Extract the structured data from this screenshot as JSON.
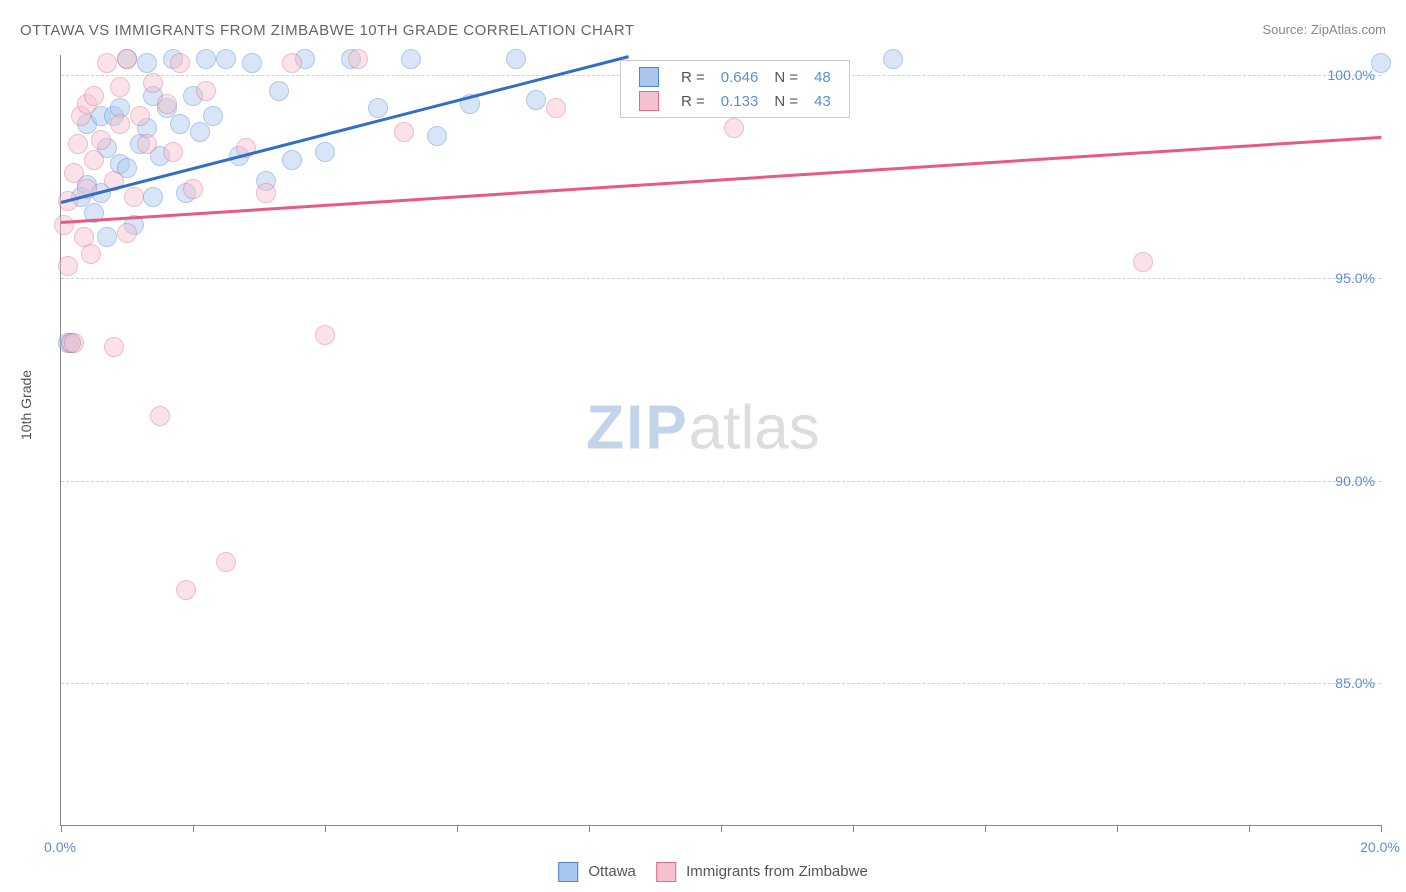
{
  "title": "OTTAWA VS IMMIGRANTS FROM ZIMBABWE 10TH GRADE CORRELATION CHART",
  "source_label": "Source: ZipAtlas.com",
  "yaxis_label": "10th Grade",
  "watermark": {
    "part1": "ZIP",
    "part2": "atlas"
  },
  "chart": {
    "type": "scatter",
    "xlim": [
      0.0,
      20.0
    ],
    "ylim": [
      81.5,
      100.5
    ],
    "x_ticks": [
      0.0,
      2.0,
      4.0,
      6.0,
      8.0,
      10.0,
      12.0,
      14.0,
      16.0,
      18.0,
      20.0
    ],
    "x_tick_labels": {
      "0": "0.0%",
      "20": "20.0%"
    },
    "y_gridlines": [
      85.0,
      90.0,
      95.0,
      100.0
    ],
    "y_tick_labels": {
      "85": "85.0%",
      "90": "90.0%",
      "95": "95.0%",
      "100": "100.0%"
    },
    "grid_color": "#d0d0d0",
    "axis_color": "#888888",
    "tick_label_color": "#5b8fd6",
    "background_color": "#ffffff",
    "marker_radius": 9,
    "marker_opacity": 0.45,
    "marker_stroke_opacity": 0.9,
    "series": [
      {
        "name": "Ottawa",
        "color_fill": "#a9c7ec",
        "color_stroke": "#4d88d6",
        "line_color": "#2f6fc9",
        "R": "0.646",
        "N": "48",
        "trend": {
          "x1": 0.0,
          "y1": 96.9,
          "x2": 8.6,
          "y2": 100.5
        },
        "points": [
          [
            0.1,
            93.4
          ],
          [
            0.15,
            93.4
          ],
          [
            0.3,
            97.0
          ],
          [
            0.4,
            97.3
          ],
          [
            0.4,
            98.8
          ],
          [
            0.5,
            96.6
          ],
          [
            0.6,
            97.1
          ],
          [
            0.6,
            99.0
          ],
          [
            0.7,
            96.0
          ],
          [
            0.7,
            98.2
          ],
          [
            0.8,
            99.0
          ],
          [
            0.9,
            97.8
          ],
          [
            0.9,
            99.2
          ],
          [
            1.0,
            97.7
          ],
          [
            1.0,
            100.4
          ],
          [
            1.1,
            96.3
          ],
          [
            1.2,
            98.3
          ],
          [
            1.3,
            98.7
          ],
          [
            1.3,
            100.3
          ],
          [
            1.4,
            99.5
          ],
          [
            1.4,
            97.0
          ],
          [
            1.5,
            98.0
          ],
          [
            1.6,
            99.2
          ],
          [
            1.7,
            100.4
          ],
          [
            1.8,
            98.8
          ],
          [
            1.9,
            97.1
          ],
          [
            2.0,
            99.5
          ],
          [
            2.1,
            98.6
          ],
          [
            2.2,
            100.4
          ],
          [
            2.3,
            99.0
          ],
          [
            2.5,
            100.4
          ],
          [
            2.7,
            98.0
          ],
          [
            2.9,
            100.3
          ],
          [
            3.1,
            97.4
          ],
          [
            3.3,
            99.6
          ],
          [
            3.5,
            97.9
          ],
          [
            3.7,
            100.4
          ],
          [
            4.0,
            98.1
          ],
          [
            4.4,
            100.4
          ],
          [
            4.8,
            99.2
          ],
          [
            5.3,
            100.4
          ],
          [
            5.7,
            98.5
          ],
          [
            6.2,
            99.3
          ],
          [
            6.9,
            100.4
          ],
          [
            7.2,
            99.4
          ],
          [
            9.4,
            99.2
          ],
          [
            12.6,
            100.4
          ],
          [
            20.0,
            100.3
          ]
        ]
      },
      {
        "name": "Immigrants from Zimbabwe",
        "color_fill": "#f4c1cd",
        "color_stroke": "#e36a8c",
        "line_color": "#e65a85",
        "R": "0.133",
        "N": "43",
        "trend": {
          "x1": 0.0,
          "y1": 96.4,
          "x2": 20.0,
          "y2": 98.5
        },
        "points": [
          [
            0.05,
            96.3
          ],
          [
            0.1,
            95.3
          ],
          [
            0.1,
            96.9
          ],
          [
            0.15,
            93.4
          ],
          [
            0.2,
            93.4
          ],
          [
            0.2,
            97.6
          ],
          [
            0.25,
            98.3
          ],
          [
            0.3,
            99.0
          ],
          [
            0.35,
            96.0
          ],
          [
            0.4,
            97.2
          ],
          [
            0.4,
            99.3
          ],
          [
            0.45,
            95.6
          ],
          [
            0.5,
            97.9
          ],
          [
            0.5,
            99.5
          ],
          [
            0.6,
            98.4
          ],
          [
            0.7,
            100.3
          ],
          [
            0.8,
            97.4
          ],
          [
            0.8,
            93.3
          ],
          [
            0.9,
            98.8
          ],
          [
            0.9,
            99.7
          ],
          [
            1.0,
            96.1
          ],
          [
            1.0,
            100.4
          ],
          [
            1.1,
            97.0
          ],
          [
            1.2,
            99.0
          ],
          [
            1.3,
            98.3
          ],
          [
            1.4,
            99.8
          ],
          [
            1.5,
            91.6
          ],
          [
            1.6,
            99.3
          ],
          [
            1.7,
            98.1
          ],
          [
            1.8,
            100.3
          ],
          [
            1.9,
            87.3
          ],
          [
            2.2,
            99.6
          ],
          [
            2.5,
            88.0
          ],
          [
            2.8,
            98.2
          ],
          [
            3.1,
            97.1
          ],
          [
            3.5,
            100.3
          ],
          [
            4.0,
            93.6
          ],
          [
            4.5,
            100.4
          ],
          [
            5.2,
            98.6
          ],
          [
            7.5,
            99.2
          ],
          [
            10.2,
            98.7
          ],
          [
            16.4,
            95.4
          ],
          [
            2.0,
            97.2
          ]
        ]
      }
    ]
  },
  "legend_top": {
    "r_prefix": "R =",
    "n_prefix": "N ="
  },
  "legend_bottom": {
    "items": [
      "Ottawa",
      "Immigrants from Zimbabwe"
    ]
  }
}
